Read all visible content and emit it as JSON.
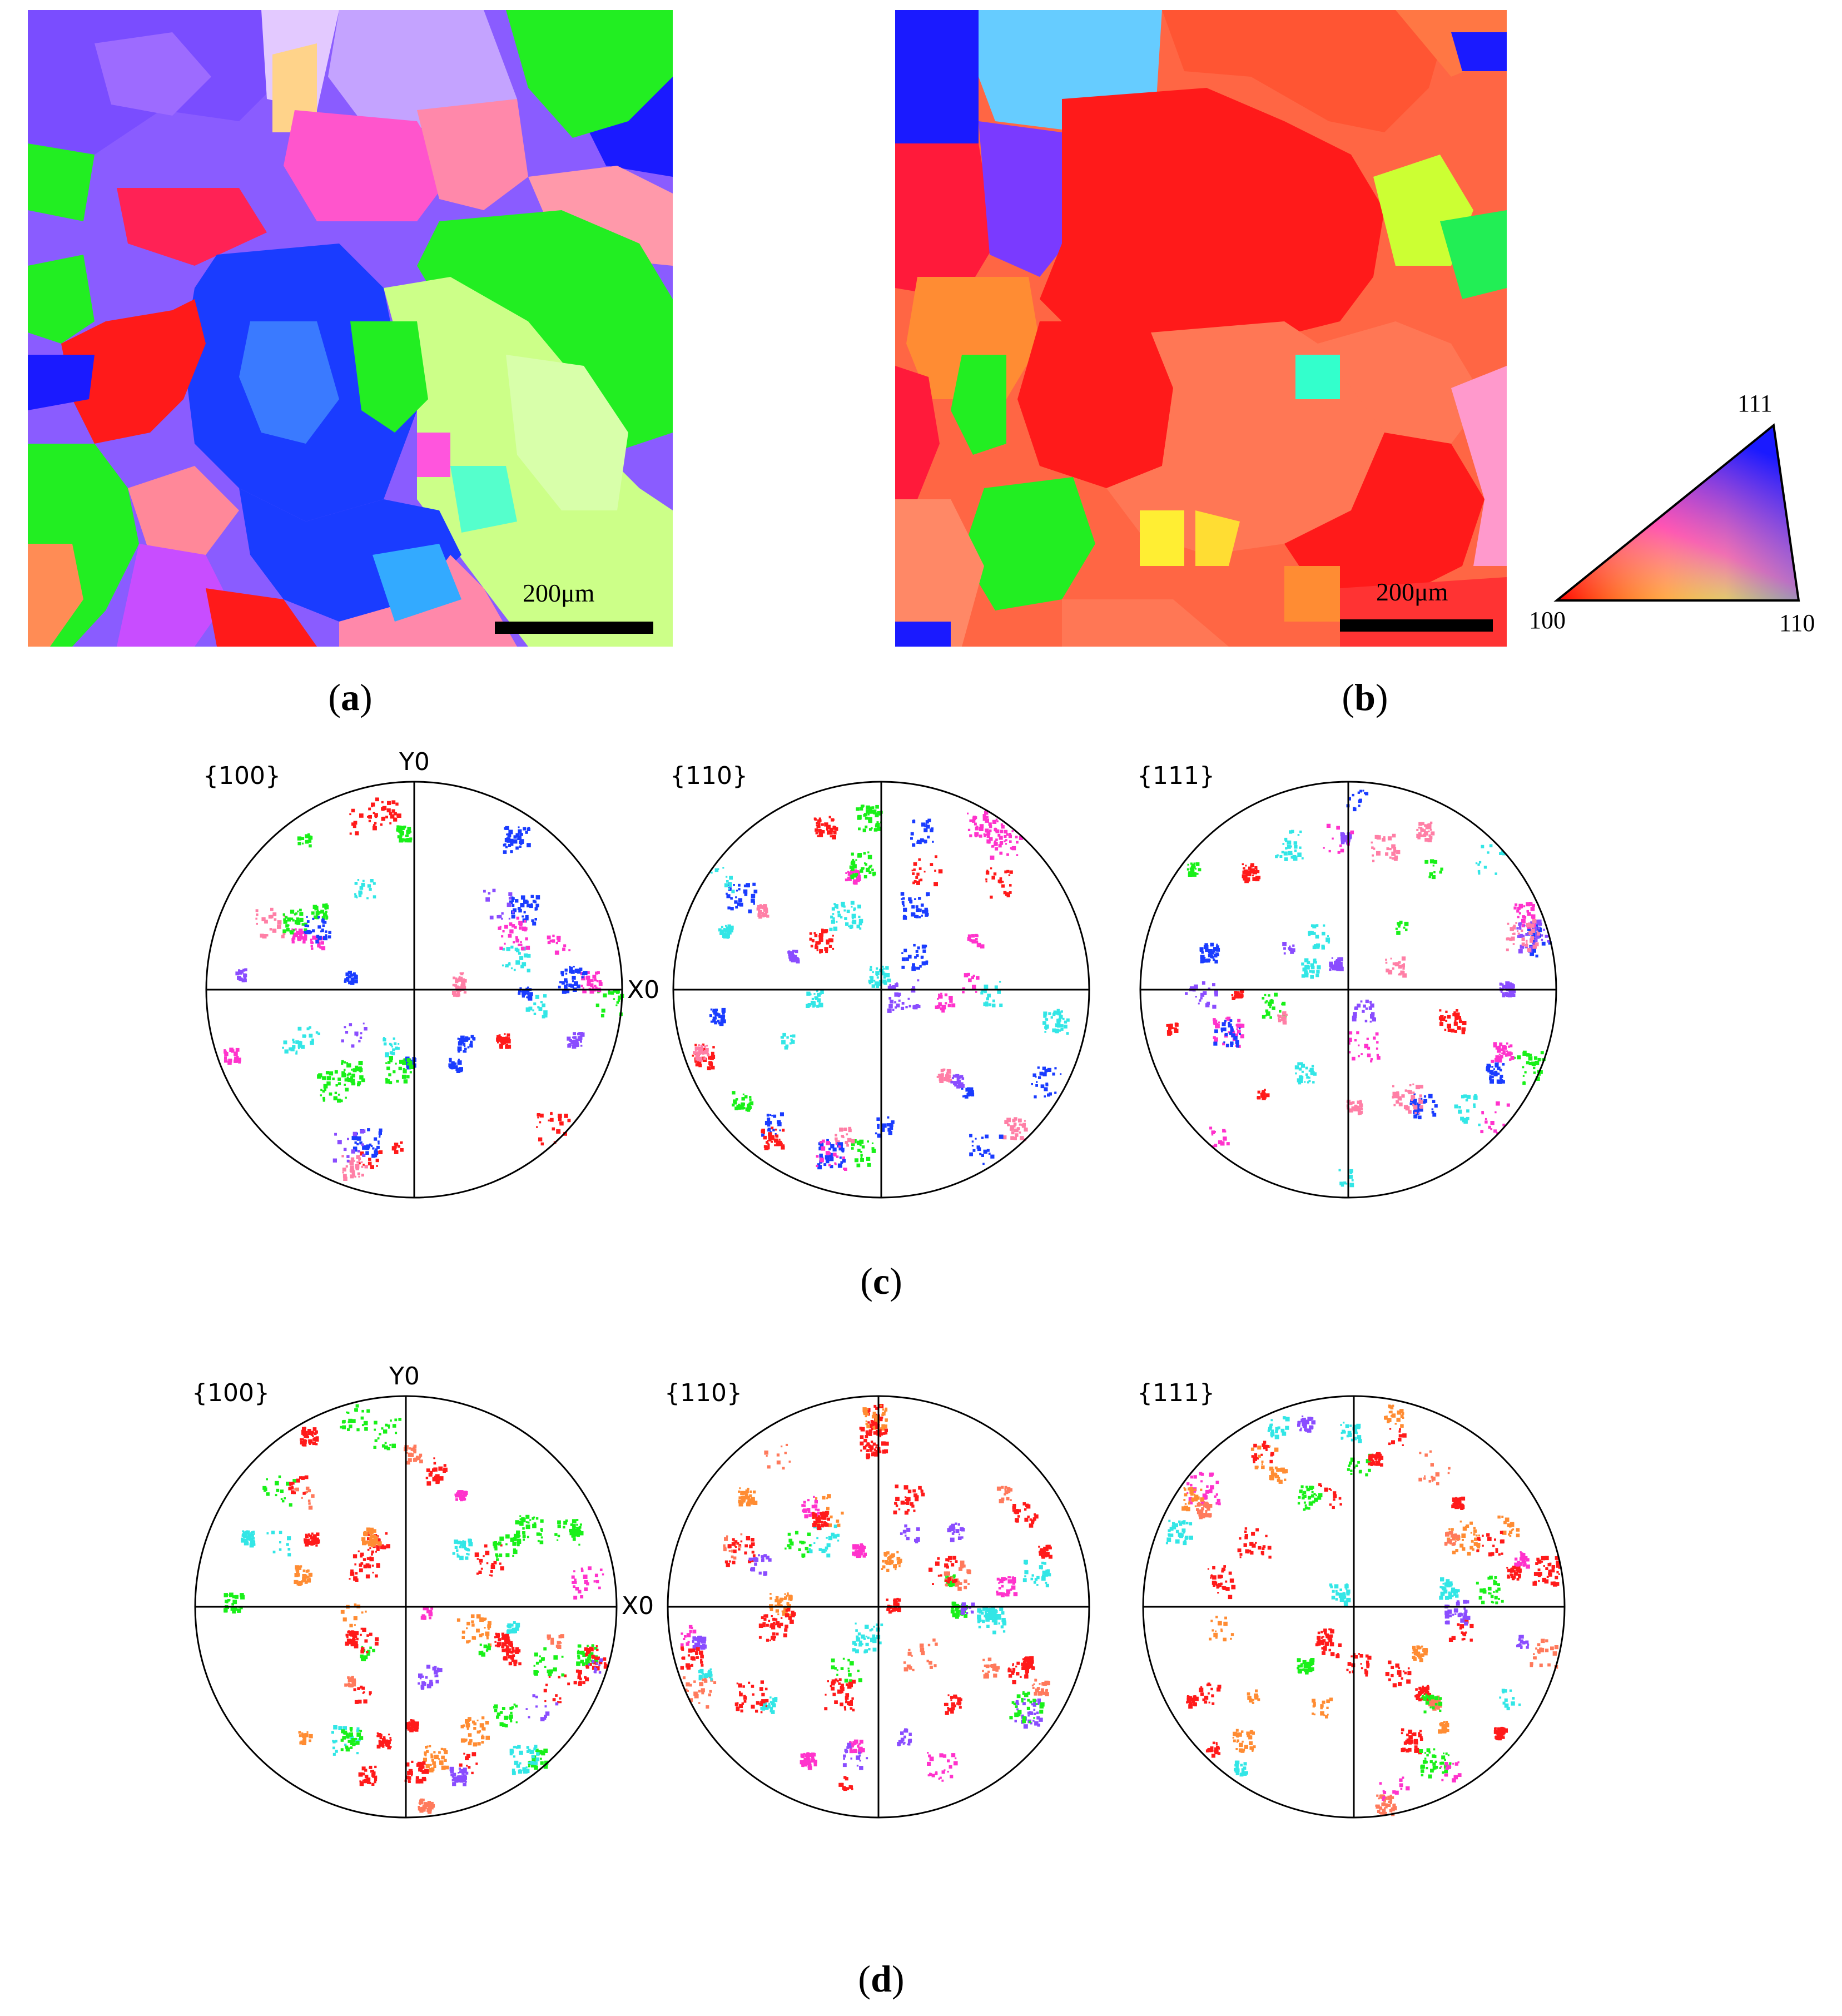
{
  "panels": {
    "a": {
      "caption_letter": "a",
      "scale_label": "200μm"
    },
    "b": {
      "caption_letter": "b",
      "scale_label": "200μm"
    },
    "c": {
      "caption_letter": "c",
      "labels": [
        "{100}",
        "{110}",
        "{111}"
      ],
      "y_axis": "Y0",
      "x_axis": "X0"
    },
    "d": {
      "caption_letter": "d",
      "labels": [
        "{100}",
        "{110}",
        "{111}"
      ],
      "y_axis": "Y0",
      "x_axis": "X0"
    }
  },
  "ipf_key": {
    "top": "111",
    "left": "100",
    "right": "110"
  },
  "colors": {
    "red": "#ff1a1a",
    "green": "#19f019",
    "blue": "#1a3cff",
    "violet": "#8a4dff",
    "magenta": "#ff33cc",
    "pink": "#ff7fa6",
    "orange": "#ff8c33",
    "yellowgreen": "#ccff66",
    "cyan": "#33e6e6",
    "salmon": "#ff7a5c"
  }
}
